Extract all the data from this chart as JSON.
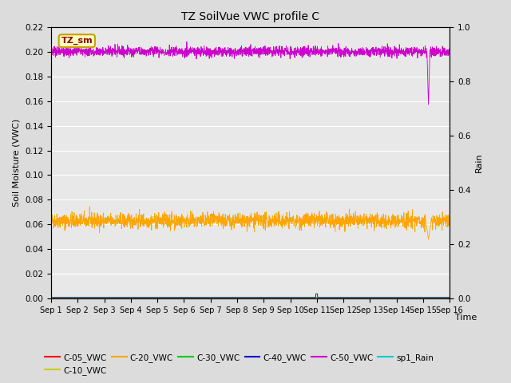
{
  "title": "TZ SoilVue VWC profile C",
  "xlabel": "Time",
  "ylabel_left": "Soil Moisture (VWC)",
  "ylabel_right": "Rain",
  "xlim_days": [
    0,
    15
  ],
  "ylim_left": [
    0.0,
    0.22
  ],
  "ylim_right": [
    0.0,
    1.0
  ],
  "n_points": 2160,
  "series": {
    "C_05_VWC": {
      "color": "#ff0000",
      "label": "C-05_VWC"
    },
    "C_10_VWC": {
      "color": "#cccc00",
      "label": "C-10_VWC"
    },
    "C_20_VWC": {
      "color": "#ffa500",
      "label": "C-20_VWC"
    },
    "C_30_VWC": {
      "color": "#00cc00",
      "label": "C-30_VWC"
    },
    "C_40_VWC": {
      "color": "#0000cc",
      "label": "C-40_VWC"
    },
    "C_50_VWC": {
      "color": "#cc00cc",
      "label": "C-50_VWC"
    },
    "sp1_Rain": {
      "color": "#00cccc",
      "label": "sp1_Rain"
    }
  },
  "tz_sm_box": {
    "text": "TZ_sm",
    "text_color": "#8B0000",
    "bg_color": "#ffffc0",
    "border_color": "#c8a000"
  },
  "fig_bg": "#dcdcdc",
  "ax_bg": "#e8e8e8",
  "grid_color": "#ffffff",
  "yticks": [
    0.0,
    0.02,
    0.04,
    0.06,
    0.08,
    0.1,
    0.12,
    0.14,
    0.16,
    0.18,
    0.2,
    0.22
  ],
  "yticks_right": [
    0.0,
    0.2,
    0.4,
    0.6,
    0.8,
    1.0
  ],
  "xtick_labels": [
    "Sep 1",
    "Sep 2",
    "Sep 3",
    "Sep 4",
    "Sep 5",
    "Sep 6",
    "Sep 7",
    "Sep 8",
    "Sep 9",
    "Sep 10",
    "Sep 11",
    "Sep 12",
    "Sep 13",
    "Sep 14",
    "Sep 15",
    "Sep 16"
  ],
  "c50_mean": 0.2,
  "c50_std": 0.002,
  "c50_dip_day": 14.2,
  "c50_dip_val": 0.157,
  "c20_mean": 0.063,
  "c20_std": 0.003,
  "c20_dip_day": 14.2,
  "c20_dip_val": 0.048
}
